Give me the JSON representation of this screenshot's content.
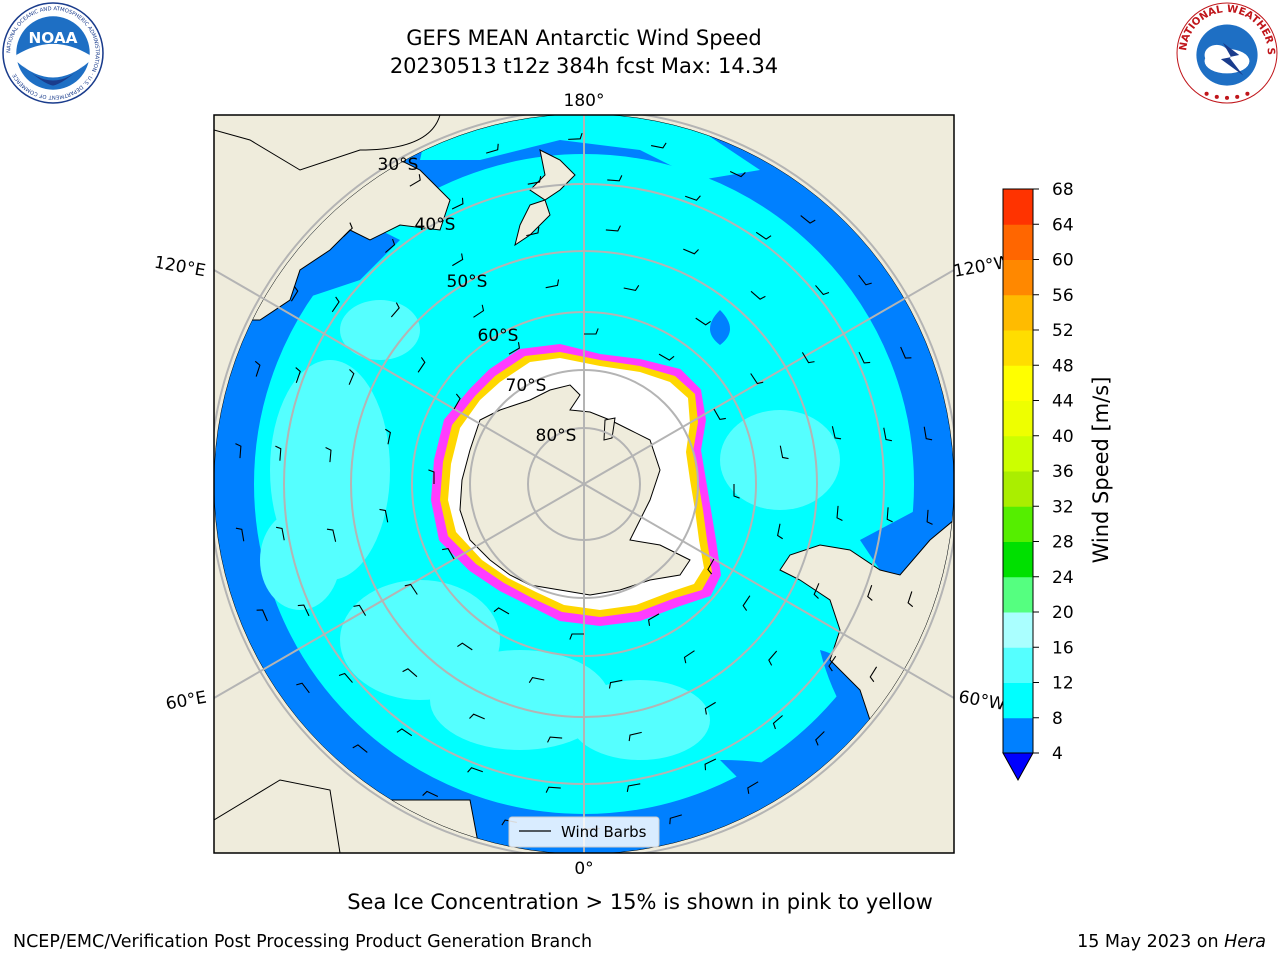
{
  "title": {
    "line1": "GEFS MEAN Antarctic Wind Speed",
    "line2": "20230513 t12z 384h fcst   Max: 14.34"
  },
  "logos": {
    "left": "noaa-logo",
    "right": "national-weather-service-logo",
    "noaa_text": "NOAA",
    "noaa_ring": "NATIONAL OCEANIC AND ATMOSPHERIC ADMINISTRATION · U.S. DEPARTMENT OF COMMERCE",
    "nws_ring": "NATIONAL WEATHER SERVICE"
  },
  "map": {
    "projection": "south-polar-stereographic",
    "longitude_labels": [
      "180°",
      "120°E",
      "120°W",
      "60°E",
      "60°W",
      "0°"
    ],
    "latitude_labels": [
      "30°S",
      "40°S",
      "50°S",
      "60°S",
      "70°S",
      "80°S"
    ],
    "legend_label": "Wind Barbs",
    "colors": {
      "ocean_base": "#00ffff",
      "ocean_low": "#0080ff",
      "ocean_pale": "#55ffff",
      "land": "#efecdc",
      "ice_edge": "#ff3cff",
      "ice_fringe": "#ffd700",
      "grid": "#b4b4b4"
    }
  },
  "colorbar": {
    "label": "Wind Speed [m/s]",
    "ticks": [
      "4",
      "8",
      "12",
      "16",
      "20",
      "24",
      "28",
      "32",
      "36",
      "40",
      "44",
      "48",
      "52",
      "56",
      "60",
      "64",
      "68"
    ],
    "colors": [
      "#0080ff",
      "#00ffff",
      "#55ffff",
      "#aaffff",
      "#55ff80",
      "#00e000",
      "#55ee00",
      "#aaee00",
      "#ccff00",
      "#eeff00",
      "#ffff00",
      "#ffdd00",
      "#ffbb00",
      "#ff8800",
      "#ff6600",
      "#ff3300",
      "#ff0000"
    ],
    "extend_color": "#0000ff"
  },
  "caption": "Sea Ice Concentration > 15% is shown in pink to yellow",
  "footer": {
    "left": "NCEP/EMC/Verification Post Processing Product Generation Branch",
    "right_date": "15 May 2023 on ",
    "right_machine": "Hera"
  }
}
